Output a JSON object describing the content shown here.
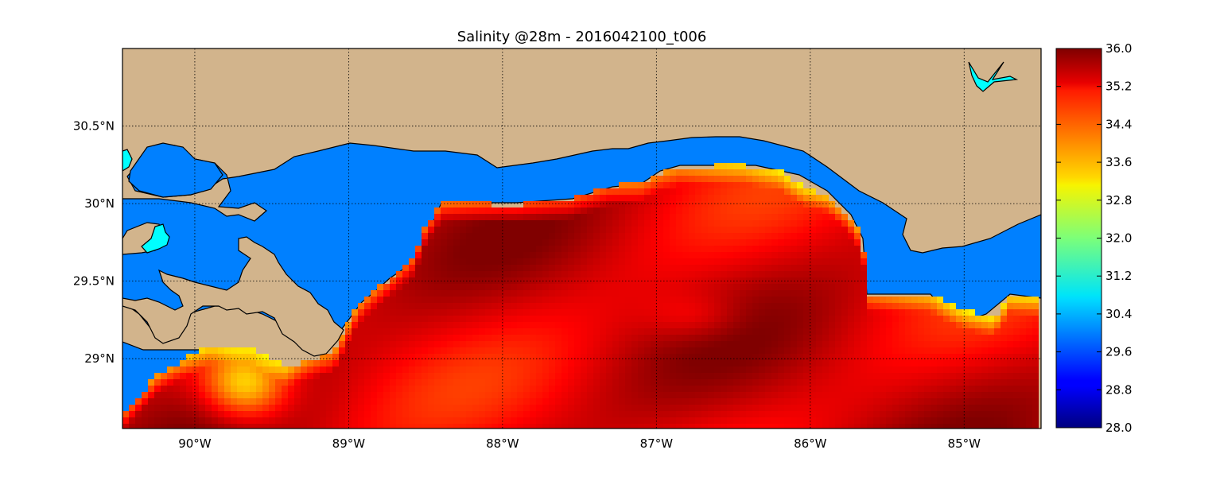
{
  "title": "Salinity @28m - 2016042100_t006",
  "map": {
    "lon_range": [
      -90.47,
      -84.5
    ],
    "lat_range": [
      28.55,
      31.0
    ],
    "colors": {
      "land": "#d2b48c",
      "nodata_water": "#0080ff",
      "lake": "#00ffff",
      "grid": "#000000"
    },
    "x_ticks": [
      {
        "value": -90,
        "label": "90°W"
      },
      {
        "value": -89,
        "label": "89°W"
      },
      {
        "value": -88,
        "label": "88°W"
      },
      {
        "value": -87,
        "label": "87°W"
      },
      {
        "value": -86,
        "label": "86°W"
      },
      {
        "value": -85,
        "label": "85°W"
      }
    ],
    "y_ticks": [
      {
        "value": 29.0,
        "label": "29°N"
      },
      {
        "value": 29.5,
        "label": "29.5°N"
      },
      {
        "value": 30.0,
        "label": "30°N"
      },
      {
        "value": 30.5,
        "label": "30.5°N"
      }
    ],
    "grid": true
  },
  "colorbar": {
    "min": 28.0,
    "max": 36.0,
    "colormap": "jet",
    "ticks": [
      "28.0",
      "28.8",
      "29.6",
      "30.4",
      "31.2",
      "32.0",
      "32.8",
      "33.6",
      "34.4",
      "35.2",
      "36.0"
    ]
  }
}
